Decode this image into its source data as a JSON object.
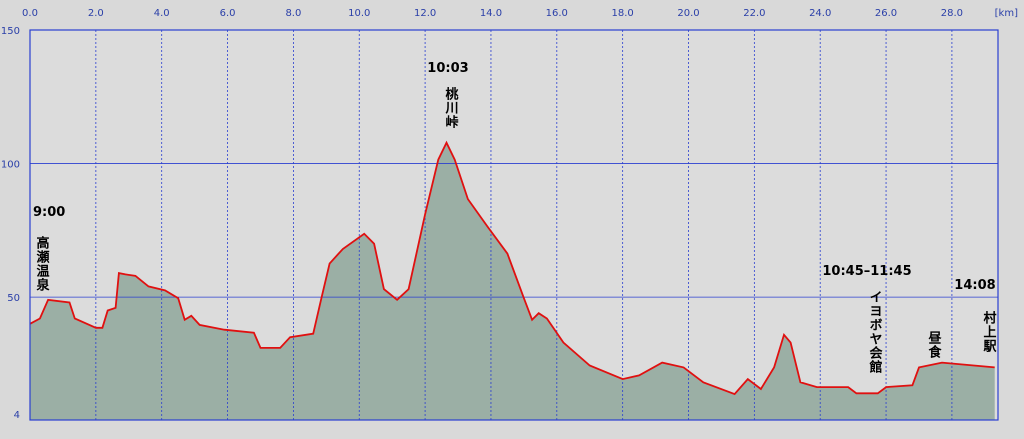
{
  "chart_data": {
    "type": "area",
    "x": [
      0,
      0.3,
      0.55,
      1.2,
      1.36,
      2.0,
      2.2,
      2.36,
      2.6,
      2.7,
      2.9,
      3.2,
      3.6,
      4.1,
      4.5,
      4.7,
      4.9,
      5.15,
      5.9,
      6.8,
      7.0,
      7.6,
      7.9,
      8.6,
      8.85,
      9.1,
      9.5,
      10.15,
      10.45,
      10.75,
      11.15,
      11.5,
      12.0,
      12.4,
      12.65,
      12.9,
      13.3,
      13.9,
      14.5,
      15.0,
      15.25,
      15.45,
      15.7,
      16.2,
      17.0,
      18.0,
      18.5,
      19.2,
      19.85,
      20.45,
      21.4,
      21.8,
      22.2,
      22.6,
      22.9,
      23.1,
      23.4,
      23.9,
      24.85,
      25.1,
      25.75,
      26.0,
      26.8,
      27.0,
      27.7,
      29.3
    ],
    "values": [
      40,
      42,
      49,
      48,
      42,
      38.5,
      38.5,
      45,
      46,
      59,
      58.5,
      58,
      54,
      52.5,
      49.6,
      41.5,
      43,
      39.6,
      37.8,
      36.7,
      31,
      31,
      35,
      36.3,
      49.6,
      62.6,
      68,
      73.7,
      70,
      53,
      49,
      53,
      81,
      101.5,
      107.8,
      101.5,
      86.7,
      76.3,
      66.3,
      49.6,
      41.5,
      44,
      42,
      33,
      24.4,
      19.3,
      20.7,
      25.5,
      23.7,
      18.1,
      13.7,
      19.3,
      15.6,
      23.7,
      35.9,
      33,
      18.1,
      16.3,
      16.3,
      14,
      14,
      16.3,
      17,
      23.7,
      25.5,
      23.7
    ],
    "color": "#e01010",
    "fill": "#9bafa5",
    "xlim": [
      0,
      29.4
    ],
    "xticks": [
      {
        "value": 0,
        "label": "0.0"
      },
      {
        "value": 2,
        "label": "2.0"
      },
      {
        "value": 4,
        "label": "4.0"
      },
      {
        "value": 6,
        "label": "6.0"
      },
      {
        "value": 8,
        "label": "8.0"
      },
      {
        "value": 10,
        "label": "10.0"
      },
      {
        "value": 12,
        "label": "12.0"
      },
      {
        "value": 14,
        "label": "14.0"
      },
      {
        "value": 16,
        "label": "16.0"
      },
      {
        "value": 18,
        "label": "18.0"
      },
      {
        "value": 20,
        "label": "20.0"
      },
      {
        "value": 22,
        "label": "22.0"
      },
      {
        "value": 24,
        "label": "24.0"
      },
      {
        "value": 26,
        "label": "26.0"
      },
      {
        "value": 28,
        "label": "28.0"
      }
    ],
    "x_unit": "[km]",
    "ylim": [
      4,
      150
    ],
    "yticks": [
      4,
      50,
      100,
      150
    ],
    "annotations": [
      {
        "time": "9:00",
        "place": "高瀬温泉"
      },
      {
        "time": "10:03",
        "place": "桃川峠"
      },
      {
        "time": "10:45–11:45",
        "place": "イヨボヤ会館"
      },
      {
        "place": "昼食"
      },
      {
        "time": "14:08",
        "place": "村上駅"
      }
    ]
  }
}
